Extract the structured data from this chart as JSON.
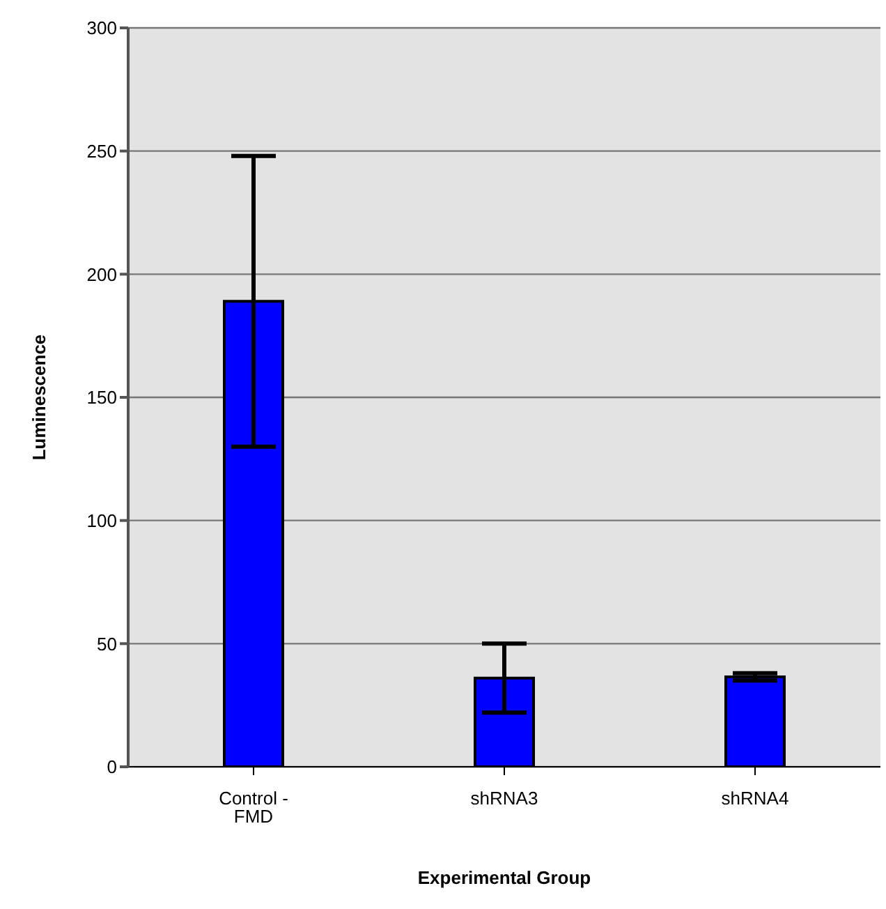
{
  "chart_data": {
    "type": "bar",
    "xlabel": "Experimental Group",
    "ylabel": "Luminescence",
    "categories": [
      "Control - FMD",
      "shRNA3",
      "shRNA4"
    ],
    "values": [
      189,
      36,
      36.5
    ],
    "errors": [
      59,
      14,
      1.5
    ],
    "color": "#0000ff",
    "ylim": [
      0,
      300
    ],
    "yticks": [
      0,
      50,
      100,
      150,
      200,
      250,
      300
    ],
    "grid": "y",
    "legend": false
  }
}
